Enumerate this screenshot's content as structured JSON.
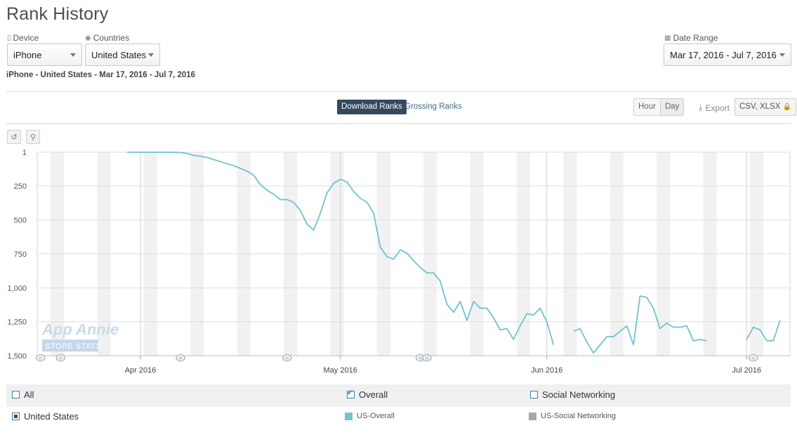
{
  "header": {
    "title": "Rank History"
  },
  "filters": {
    "device": {
      "label": "Device",
      "value": "iPhone"
    },
    "countries": {
      "label": "Countries",
      "value": "United States"
    },
    "date_range": {
      "label": "Date Range",
      "value": "Mar 17, 2016 - Jul 7, 2016"
    },
    "summary": "iPhone - United States - Mar 17, 2016 - Jul 7, 2016"
  },
  "tabs": {
    "download": "Download Ranks",
    "grossing": "Grossing Ranks"
  },
  "granularity": {
    "hour": "Hour",
    "day": "Day"
  },
  "export": {
    "label": "Export",
    "formats": "CSV, XLSX"
  },
  "watermark": {
    "line1": "App Annie",
    "line2": "STORE STATS"
  },
  "legend": {
    "all": "All",
    "overall": "Overall",
    "social": "Social Networking",
    "country": "United States",
    "us_overall": "US-Overall",
    "us_social": "US-Social Networking",
    "colors": {
      "overall": "#72c2d0",
      "social": "#a8a8a8"
    }
  },
  "chart_data": {
    "type": "line",
    "y_inverted": true,
    "ylim": [
      1,
      1500
    ],
    "y_ticks": [
      {
        "value": 1,
        "label": "1"
      },
      {
        "value": 250,
        "label": "250"
      },
      {
        "value": 500,
        "label": "500"
      },
      {
        "value": 750,
        "label": "750"
      },
      {
        "value": 1000,
        "label": "1,000"
      },
      {
        "value": 1250,
        "label": "1,250"
      },
      {
        "value": 1500,
        "label": "1,500"
      }
    ],
    "x_range": [
      "2016-03-17",
      "2016-07-07"
    ],
    "x_ticks": [
      {
        "date": "2016-04-01",
        "label": "Apr 2016"
      },
      {
        "date": "2016-05-01",
        "label": "May 2016"
      },
      {
        "date": "2016-06-01",
        "label": "Jun 2016"
      },
      {
        "date": "2016-07-01",
        "label": "Jul 2016"
      }
    ],
    "annotation_dates": [
      "2016-03-17",
      "2016-03-20",
      "2016-04-07",
      "2016-04-23",
      "2016-05-13",
      "2016-05-14",
      "2016-07-02"
    ],
    "series": [
      {
        "name": "US-Overall",
        "color": "#72c2d0",
        "points": [
          [
            "2016-03-30",
            1
          ],
          [
            "2016-03-31",
            1
          ],
          [
            "2016-04-01",
            1
          ],
          [
            "2016-04-02",
            1
          ],
          [
            "2016-04-03",
            1
          ],
          [
            "2016-04-04",
            1
          ],
          [
            "2016-04-05",
            1
          ],
          [
            "2016-04-06",
            1
          ],
          [
            "2016-04-07",
            3
          ],
          [
            "2016-04-08",
            10
          ],
          [
            "2016-04-09",
            25
          ],
          [
            "2016-04-10",
            30
          ],
          [
            "2016-04-11",
            40
          ],
          [
            "2016-04-12",
            55
          ],
          [
            "2016-04-13",
            70
          ],
          [
            "2016-04-14",
            85
          ],
          [
            "2016-04-15",
            100
          ],
          [
            "2016-04-16",
            120
          ],
          [
            "2016-04-17",
            140
          ],
          [
            "2016-04-18",
            170
          ],
          [
            "2016-04-19",
            240
          ],
          [
            "2016-04-20",
            280
          ],
          [
            "2016-04-21",
            310
          ],
          [
            "2016-04-22",
            350
          ],
          [
            "2016-04-23",
            350
          ],
          [
            "2016-04-24",
            370
          ],
          [
            "2016-04-25",
            430
          ],
          [
            "2016-04-26",
            530
          ],
          [
            "2016-04-27",
            575
          ],
          [
            "2016-04-28",
            450
          ],
          [
            "2016-04-29",
            300
          ],
          [
            "2016-04-30",
            230
          ],
          [
            "2016-05-01",
            200
          ],
          [
            "2016-05-02",
            220
          ],
          [
            "2016-05-03",
            290
          ],
          [
            "2016-05-04",
            340
          ],
          [
            "2016-05-05",
            370
          ],
          [
            "2016-05-06",
            450
          ],
          [
            "2016-05-07",
            700
          ],
          [
            "2016-05-08",
            770
          ],
          [
            "2016-05-09",
            790
          ],
          [
            "2016-05-10",
            720
          ],
          [
            "2016-05-11",
            745
          ],
          [
            "2016-05-12",
            800
          ],
          [
            "2016-05-13",
            850
          ],
          [
            "2016-05-14",
            890
          ],
          [
            "2016-05-15",
            890
          ],
          [
            "2016-05-16",
            950
          ],
          [
            "2016-05-17",
            1120
          ],
          [
            "2016-05-18",
            1180
          ],
          [
            "2016-05-19",
            1100
          ],
          [
            "2016-05-20",
            1240
          ],
          [
            "2016-05-21",
            1100
          ],
          [
            "2016-05-22",
            1150
          ],
          [
            "2016-05-23",
            1150
          ],
          [
            "2016-05-24",
            1220
          ],
          [
            "2016-05-25",
            1310
          ],
          [
            "2016-05-26",
            1300
          ],
          [
            "2016-05-27",
            1380
          ],
          [
            "2016-05-28",
            1280
          ],
          [
            "2016-05-29",
            1190
          ],
          [
            "2016-05-30",
            1200
          ],
          [
            "2016-05-31",
            1150
          ],
          [
            "2016-06-01",
            1250
          ],
          [
            "2016-06-02",
            1420
          ],
          null,
          [
            "2016-06-05",
            1320
          ],
          [
            "2016-06-06",
            1300
          ],
          [
            "2016-06-07",
            1400
          ],
          [
            "2016-06-08",
            1480
          ],
          [
            "2016-06-09",
            1420
          ],
          [
            "2016-06-10",
            1360
          ],
          [
            "2016-06-11",
            1360
          ],
          [
            "2016-06-12",
            1320
          ],
          [
            "2016-06-13",
            1280
          ],
          [
            "2016-06-14",
            1420
          ],
          [
            "2016-06-15",
            1060
          ],
          [
            "2016-06-16",
            1070
          ],
          [
            "2016-06-17",
            1150
          ],
          [
            "2016-06-18",
            1300
          ],
          [
            "2016-06-19",
            1260
          ],
          [
            "2016-06-20",
            1290
          ],
          [
            "2016-06-21",
            1290
          ],
          [
            "2016-06-22",
            1280
          ],
          [
            "2016-06-23",
            1390
          ],
          [
            "2016-06-24",
            1380
          ],
          [
            "2016-06-25",
            1390
          ],
          null,
          [
            "2016-07-01",
            1380
          ],
          [
            "2016-07-02",
            1290
          ],
          [
            "2016-07-03",
            1310
          ],
          [
            "2016-07-04",
            1390
          ],
          [
            "2016-07-05",
            1390
          ],
          [
            "2016-07-06",
            1240
          ]
        ]
      }
    ]
  }
}
